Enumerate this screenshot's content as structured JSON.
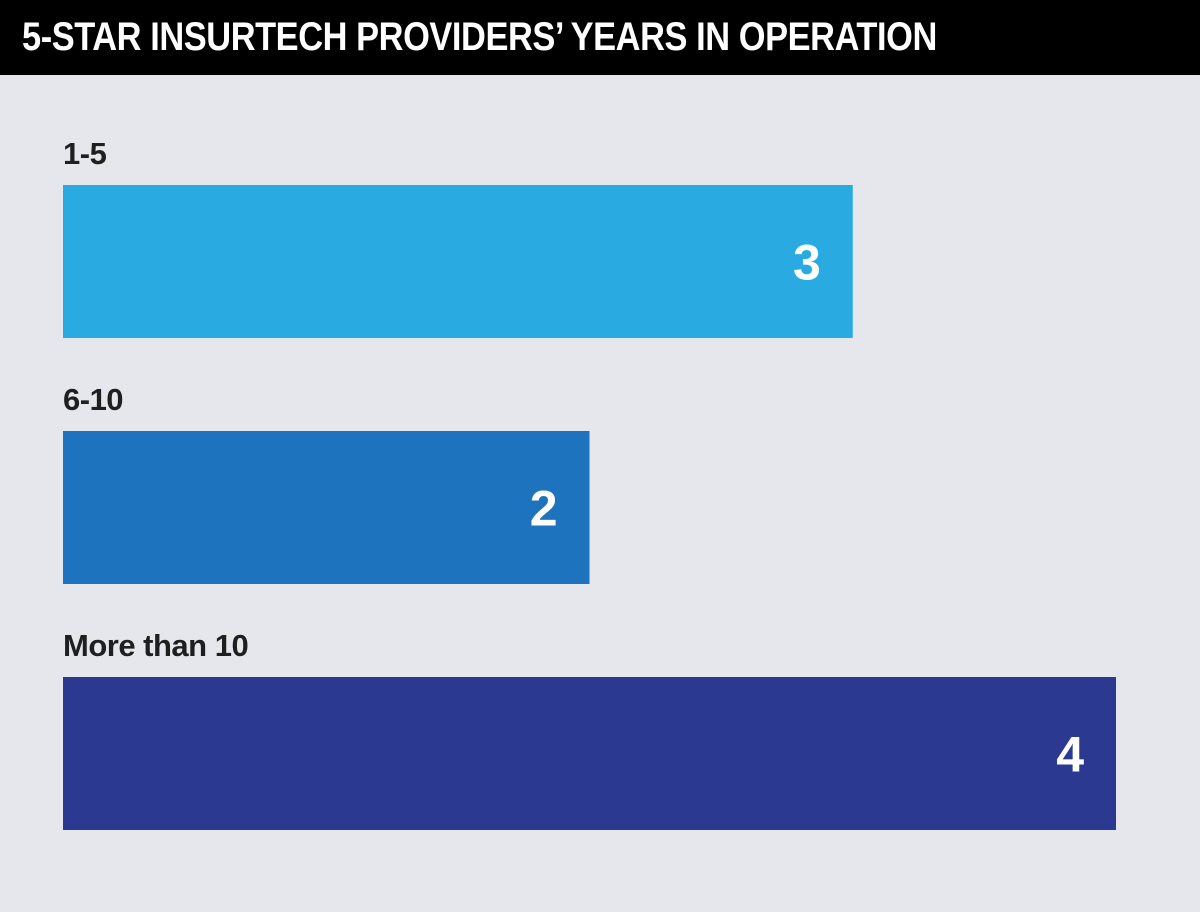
{
  "chart_data": {
    "type": "bar",
    "orientation": "horizontal",
    "title": "5-STAR INSURTECH PROVIDERS’ YEARS IN OPERATION",
    "categories": [
      "1-5",
      "6-10",
      "More than 10"
    ],
    "values": [
      3,
      2,
      4
    ],
    "value_labels": [
      "3",
      "2",
      "4"
    ],
    "colors": [
      "#29abe2",
      "#1e73be",
      "#2b3990"
    ],
    "xlim": [
      0,
      4
    ],
    "grid": false,
    "legend": "none"
  },
  "colors": {
    "background": "#e6e7ec",
    "header": "#000000",
    "title_text": "#ffffff",
    "label_text": "#1f1f1f"
  }
}
